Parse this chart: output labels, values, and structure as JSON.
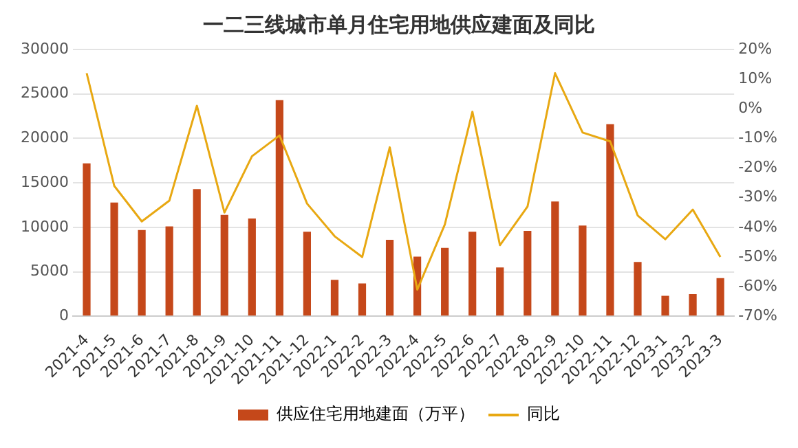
{
  "chart_data": {
    "type": "bar",
    "title": "一二三线城市单月住宅用地供应建面及同比",
    "categories": [
      "2021-4",
      "2021-5",
      "2021-6",
      "2021-7",
      "2021-8",
      "2021-9",
      "2021-10",
      "2021-11",
      "2021-12",
      "2022-1",
      "2022-2",
      "2022-3",
      "2022-4",
      "2022-5",
      "2022-6",
      "2022-7",
      "2022-8",
      "2022-9",
      "2022-10",
      "2022-11",
      "2022-12",
      "2023-1",
      "2023-2",
      "2023-3"
    ],
    "series": [
      {
        "name": "供应住宅用地建面（万平）",
        "color": "#c5481a",
        "values": [
          17200,
          12800,
          9700,
          10100,
          14300,
          11400,
          11000,
          24300,
          9500,
          4100,
          3700,
          8600,
          6700,
          7700,
          9500,
          5500,
          9600,
          12900,
          10200,
          21600,
          6100,
          2300,
          2500,
          4300
        ]
      },
      {
        "name": "同比",
        "type": "line",
        "axis": "y2",
        "color": "#e8a812",
        "values": [
          12,
          -26,
          -38,
          -31,
          1,
          -35,
          -16,
          -9,
          -32,
          -43,
          -50,
          -13,
          -61,
          -39,
          -1,
          -46,
          -33,
          12,
          -8,
          -11,
          -36,
          -44,
          -34,
          -50
        ]
      }
    ],
    "ylim": [
      0,
      30000
    ],
    "yticks": [
      0,
      5000,
      10000,
      15000,
      20000,
      25000,
      30000
    ],
    "y2lim": [
      -70,
      20
    ],
    "y2ticks": [
      {
        "value": -70,
        "label": "-70%"
      },
      {
        "value": -60,
        "label": "-60%"
      },
      {
        "value": -50,
        "label": "-50%"
      },
      {
        "value": -40,
        "label": "-40%"
      },
      {
        "value": -30,
        "label": "-30%"
      },
      {
        "value": -20,
        "label": "-20%"
      },
      {
        "value": -10,
        "label": "-10%"
      },
      {
        "value": 0,
        "label": "0%"
      },
      {
        "value": 10,
        "label": "10%"
      },
      {
        "value": 20,
        "label": "20%"
      }
    ],
    "grid": "y",
    "legend": "bottom",
    "marker": "none",
    "line_style": "solid"
  }
}
